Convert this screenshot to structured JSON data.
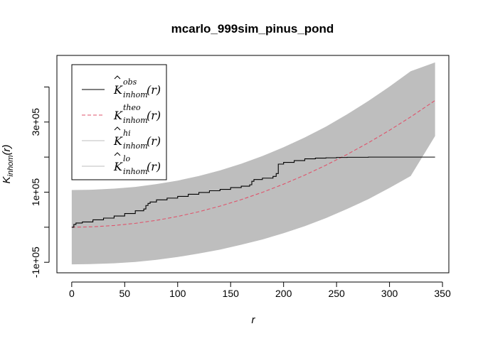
{
  "chart_data": {
    "type": "line",
    "title": "mcarlo_999sim_pinus_pond",
    "xlabel": "r",
    "ylabel": {
      "base": "K",
      "sub": "inhom",
      "arg": "(r)"
    },
    "xlim": [
      -14,
      356
    ],
    "ylim": [
      -130000,
      490000
    ],
    "x_ticks": [
      0,
      50,
      100,
      150,
      200,
      250,
      300,
      350
    ],
    "x_tick_labels": [
      "0",
      "50",
      "100",
      "150",
      "200",
      "250",
      "300",
      "350"
    ],
    "y_ticks": [
      -100000,
      0,
      100000,
      200000,
      300000,
      400000
    ],
    "y_tick_labels": [
      "-1e+05",
      "",
      "1e+05",
      "",
      "3e+05",
      ""
    ],
    "legend_position": "top-left",
    "legend": [
      {
        "hat": true,
        "base": "K",
        "sup": "obs",
        "sub": "inhom",
        "arg": "(r)",
        "color": "#000000",
        "dash": "solid"
      },
      {
        "hat": false,
        "base": "K",
        "sup": "theo",
        "sub": "inhom",
        "arg": "(r)",
        "color": "#DF536B",
        "dash": "dashed"
      },
      {
        "hat": true,
        "base": "K",
        "sup": "hi",
        "sub": "inhom",
        "arg": "(r)",
        "color": "#BEBEBE",
        "dash": "solid"
      },
      {
        "hat": true,
        "base": "K",
        "sup": "lo",
        "sub": "inhom",
        "arg": "(r)",
        "color": "#BEBEBE",
        "dash": "solid"
      }
    ],
    "series": [
      {
        "name": "obs",
        "color": "#000000",
        "step": true,
        "x": [
          0,
          2,
          4,
          10,
          20,
          30,
          40,
          50,
          60,
          68,
          70,
          72,
          74,
          80,
          90,
          100,
          110,
          120,
          130,
          140,
          150,
          160,
          168,
          170,
          172,
          180,
          190,
          193,
          195,
          200,
          210,
          220,
          230,
          240,
          250,
          260,
          280,
          300,
          320,
          343
        ],
        "y": [
          0,
          8000,
          12000,
          15000,
          21000,
          26000,
          32000,
          39000,
          47000,
          52000,
          62000,
          68000,
          72000,
          78000,
          83000,
          88000,
          94000,
          99000,
          104000,
          108000,
          113000,
          117000,
          121000,
          131000,
          136000,
          140000,
          145000,
          153000,
          180000,
          185000,
          190000,
          195000,
          197000,
          198000,
          199000,
          199500,
          200000,
          200000,
          200000,
          200000
        ]
      },
      {
        "name": "theo",
        "color": "#DF536B",
        "dash": "dashed",
        "x": [
          0,
          20,
          40,
          60,
          80,
          100,
          120,
          140,
          160,
          180,
          200,
          220,
          240,
          260,
          280,
          300,
          320,
          343
        ],
        "y": [
          0,
          1230,
          4920,
          11060,
          19660,
          30720,
          44240,
          60210,
          78650,
          99540,
          122890,
          148700,
          176960,
          207680,
          240860,
          276500,
          314600,
          361500
        ]
      },
      {
        "name": "hi",
        "color": "#BEBEBE",
        "x": [
          0,
          20,
          40,
          60,
          80,
          100,
          120,
          140,
          160,
          180,
          200,
          220,
          240,
          260,
          280,
          300,
          320,
          343
        ],
        "y": [
          106000,
          107000,
          110000,
          115000,
          123000,
          133000,
          146000,
          162000,
          181000,
          203000,
          228000,
          256000,
          287000,
          322000,
          360000,
          401000,
          445000,
          470000
        ]
      },
      {
        "name": "lo",
        "color": "#BEBEBE",
        "x": [
          0,
          20,
          40,
          60,
          80,
          100,
          120,
          140,
          160,
          180,
          200,
          220,
          240,
          260,
          280,
          300,
          320,
          343
        ],
        "y": [
          -106000,
          -105000,
          -103000,
          -99000,
          -93000,
          -85000,
          -75000,
          -64000,
          -50000,
          -35000,
          -17000,
          3000,
          26000,
          52000,
          80000,
          112000,
          146000,
          260000
        ]
      }
    ]
  }
}
